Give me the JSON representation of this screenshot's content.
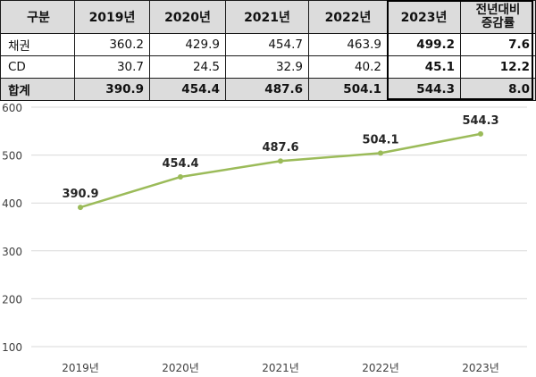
{
  "table": {
    "header": [
      "구분",
      "2019년",
      "2020년",
      "2021년",
      "2022년",
      "2023년",
      "전년대비\n증감률"
    ],
    "rows": [
      {
        "label": "채권",
        "cells": [
          "360.2",
          "429.9",
          "454.7",
          "463.9",
          "499.2",
          "7.6"
        ]
      },
      {
        "label": "CD",
        "cells": [
          "30.7",
          "24.5",
          "32.9",
          "40.2",
          "45.1",
          "12.2"
        ]
      },
      {
        "label": "합계",
        "cells": [
          "390.9",
          "454.4",
          "487.6",
          "504.1",
          "544.3",
          "8.0"
        ]
      }
    ]
  },
  "chart_data": {
    "type": "line",
    "categories": [
      "2019년",
      "2020년",
      "2021년",
      "2022년",
      "2023년"
    ],
    "series": [
      {
        "values": [
          390.9,
          454.4,
          487.6,
          504.1,
          544.3
        ],
        "color": "#9bbb59"
      }
    ],
    "data_labels": [
      "390.9",
      "454.4",
      "487.6",
      "504.1",
      "544.3"
    ],
    "yticks": [
      "100",
      "200",
      "300",
      "400",
      "500",
      "600"
    ],
    "ylim": [
      100,
      600
    ],
    "grid": true,
    "legend": "none"
  }
}
